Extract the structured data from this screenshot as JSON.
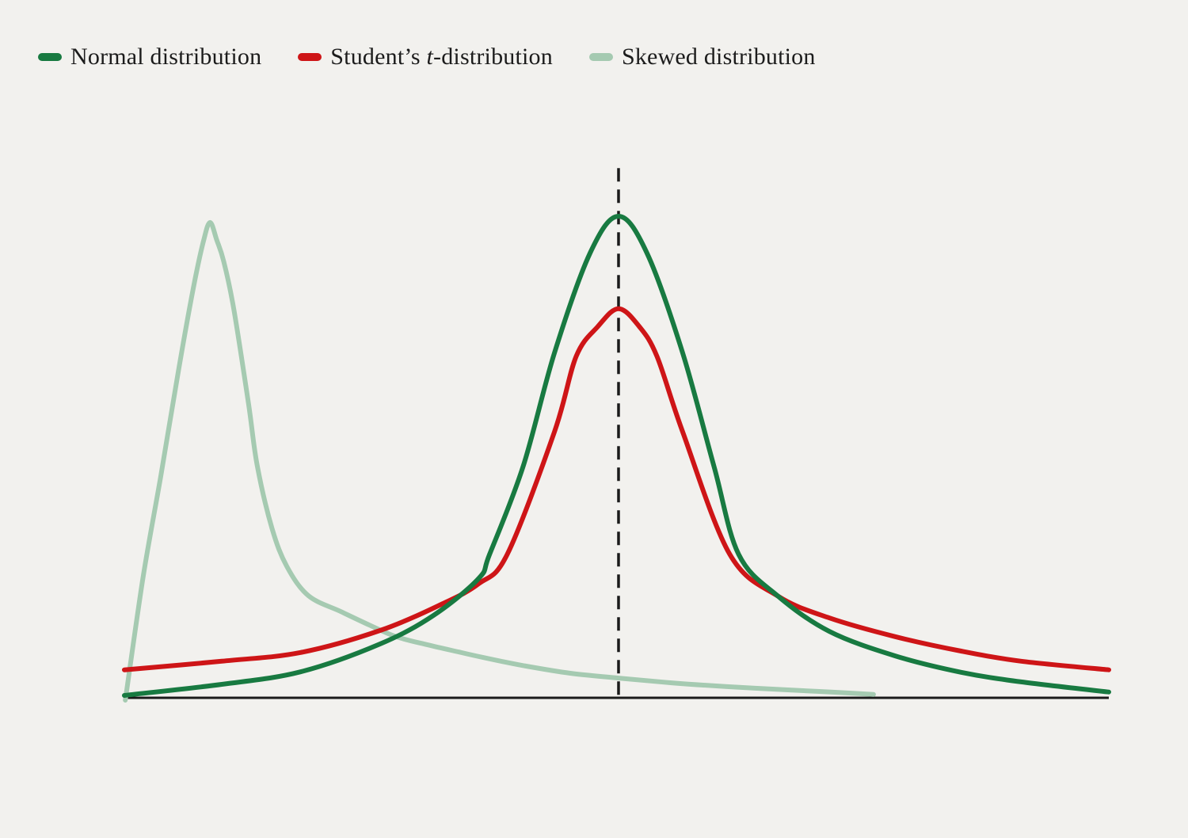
{
  "legend": {
    "items": [
      {
        "id": "normal",
        "label": "Normal distribution",
        "color": "#187a41"
      },
      {
        "id": "students-t",
        "label_pre": "Student’s ",
        "label_italic": "t",
        "label_post": "-distribution",
        "color": "#ce1517"
      },
      {
        "id": "skewed",
        "label": "Skewed distribution",
        "color": "#a5cab1"
      }
    ]
  },
  "colors": {
    "background": "#f2f1ee",
    "axis": "#1a1a1a",
    "dashed_line": "#1a1a1a",
    "text": "#1c1c1c",
    "normal_curve": "#187a41",
    "students_t_curve": "#ce1517",
    "skewed_curve": "#a5cab1"
  },
  "chart_data": {
    "type": "line",
    "title": "",
    "xlabel": "",
    "ylabel": "",
    "x_range": [
      0,
      10
    ],
    "y_range": [
      0,
      1.15
    ],
    "grid": false,
    "axes": {
      "x_axis_visible": true,
      "y_axis_visible": false,
      "ticks": "none"
    },
    "legend_position": "top-left",
    "mean_vline": {
      "x": 5.02,
      "y_from": 0,
      "y_to": 1.1,
      "style": "dashed",
      "color": "#1a1a1a"
    },
    "series": [
      {
        "id": "skewed",
        "name": "Skewed distribution",
        "color": "#a5cab1",
        "line_width": 6,
        "points": [
          [
            0.01,
            -0.005
          ],
          [
            0.19,
            0.25
          ],
          [
            0.37,
            0.46
          ],
          [
            0.55,
            0.68
          ],
          [
            0.7,
            0.85
          ],
          [
            0.8,
            0.945
          ],
          [
            0.87,
            0.987
          ],
          [
            0.94,
            0.95
          ],
          [
            1.01,
            0.906
          ],
          [
            1.11,
            0.809
          ],
          [
            1.26,
            0.613
          ],
          [
            1.35,
            0.482
          ],
          [
            1.5,
            0.352
          ],
          [
            1.65,
            0.273
          ],
          [
            1.87,
            0.212
          ],
          [
            2.2,
            0.179
          ],
          [
            2.49,
            0.151
          ],
          [
            2.76,
            0.127
          ],
          [
            3.08,
            0.11
          ],
          [
            3.4,
            0.095
          ],
          [
            3.64,
            0.084
          ],
          [
            4.05,
            0.067
          ],
          [
            4.53,
            0.051
          ],
          [
            5.02,
            0.041
          ],
          [
            5.57,
            0.031
          ],
          [
            6.14,
            0.023
          ],
          [
            6.78,
            0.016
          ],
          [
            7.18,
            0.012
          ],
          [
            7.61,
            0.007
          ]
        ]
      },
      {
        "id": "students-t",
        "name": "Student’s t-distribution",
        "color": "#ce1517",
        "line_width": 6,
        "points": [
          [
            0,
            0.058
          ],
          [
            0.99,
            0.076
          ],
          [
            1.79,
            0.094
          ],
          [
            2.6,
            0.14
          ],
          [
            3.24,
            0.196
          ],
          [
            3.6,
            0.237
          ],
          [
            3.89,
            0.298
          ],
          [
            4.37,
            0.553
          ],
          [
            4.59,
            0.709
          ],
          [
            4.81,
            0.771
          ],
          [
            5.02,
            0.808
          ],
          [
            5.23,
            0.771
          ],
          [
            5.41,
            0.709
          ],
          [
            5.67,
            0.553
          ],
          [
            6.15,
            0.298
          ],
          [
            6.64,
            0.211
          ],
          [
            7.16,
            0.166
          ],
          [
            7.83,
            0.127
          ],
          [
            8.5,
            0.097
          ],
          [
            9.11,
            0.076
          ],
          [
            10,
            0.058
          ]
        ]
      },
      {
        "id": "normal",
        "name": "Normal distribution",
        "color": "#187a41",
        "line_width": 6,
        "points": [
          [
            0,
            0.005
          ],
          [
            0.99,
            0.028
          ],
          [
            1.79,
            0.054
          ],
          [
            2.6,
            0.112
          ],
          [
            3.14,
            0.171
          ],
          [
            3.6,
            0.248
          ],
          [
            3.71,
            0.298
          ],
          [
            4.05,
            0.48
          ],
          [
            4.37,
            0.717
          ],
          [
            4.73,
            0.923
          ],
          [
            5.02,
            1.0
          ],
          [
            5.31,
            0.923
          ],
          [
            5.67,
            0.717
          ],
          [
            5.99,
            0.48
          ],
          [
            6.24,
            0.298
          ],
          [
            6.64,
            0.211
          ],
          [
            7.16,
            0.138
          ],
          [
            7.83,
            0.087
          ],
          [
            8.5,
            0.053
          ],
          [
            9.11,
            0.033
          ],
          [
            10,
            0.012
          ]
        ]
      }
    ]
  }
}
